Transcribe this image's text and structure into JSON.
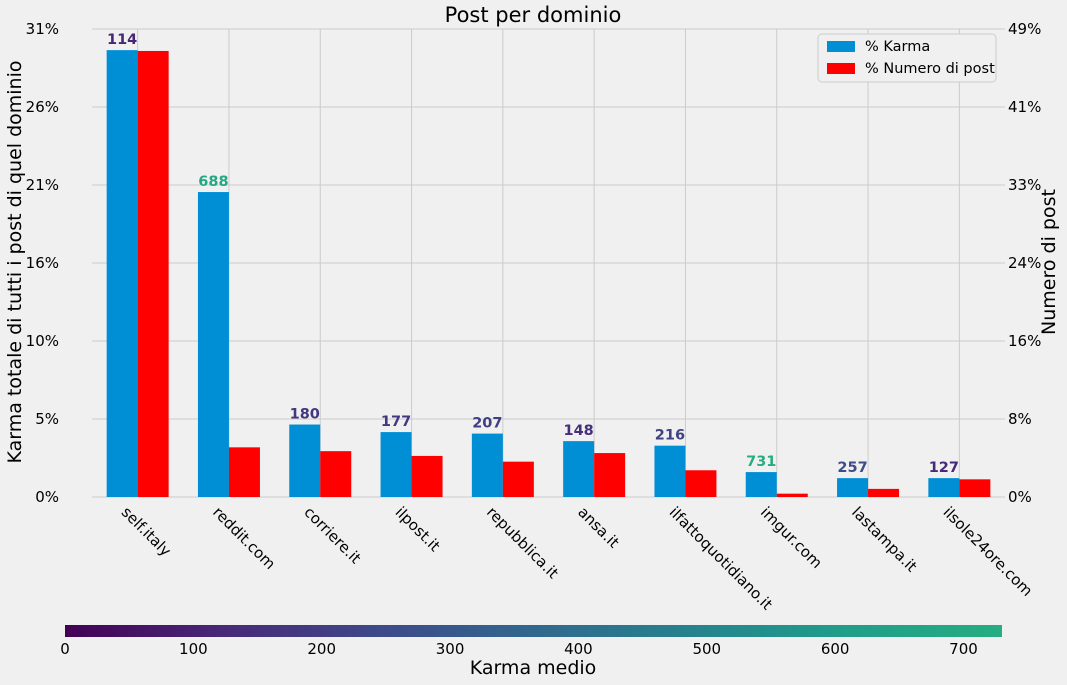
{
  "chart_data": {
    "type": "bar",
    "title": "Post per dominio",
    "ylabel": "Karma totale di tutti i post di quel dominio",
    "y2label": "Numero di post",
    "categories": [
      "self.italy",
      "reddit.com",
      "corriere.it",
      "ilpost.it",
      "repubblica.it",
      "ansa.it",
      "ilfattoquotidiano.it",
      "imgur.com",
      "lastampa.it",
      "ilsole24ore.com"
    ],
    "ylim": [
      0,
      31
    ],
    "y2lim": [
      0,
      49
    ],
    "yticks": [
      "0%",
      "5%",
      "10%",
      "16%",
      "21%",
      "26%",
      "31%"
    ],
    "y2ticks": [
      "0%",
      "8%",
      "16%",
      "24%",
      "33%",
      "41%",
      "49%"
    ],
    "grid": true,
    "legend_position": "top-right",
    "series": [
      {
        "name": "% Karma",
        "axis": "left",
        "color": "#008fd5",
        "values": [
          29.6,
          20.2,
          4.8,
          4.3,
          4.2,
          3.7,
          3.4,
          1.65,
          1.25,
          1.25
        ]
      },
      {
        "name": "% Numero di post",
        "axis": "right",
        "color": "#ff0000",
        "values": [
          46.7,
          5.2,
          4.8,
          4.3,
          3.7,
          4.6,
          2.8,
          0.35,
          0.85,
          1.85
        ]
      }
    ],
    "bar_labels": {
      "values": [
        "114",
        "688",
        "180",
        "177",
        "207",
        "148",
        "216",
        "731",
        "257",
        "127"
      ],
      "numeric": [
        114,
        688,
        180,
        177,
        207,
        148,
        216,
        731,
        257,
        127
      ]
    },
    "colorbar": {
      "label": "Karma medio",
      "range": [
        0,
        730
      ],
      "ticks": [
        "0",
        "100",
        "200",
        "300",
        "400",
        "500",
        "600",
        "700"
      ],
      "colormap": "viridis-partial",
      "stops": [
        "#440154",
        "#482878",
        "#3e4989",
        "#31688e",
        "#26828e",
        "#1f9e89",
        "#26ad81"
      ]
    }
  }
}
